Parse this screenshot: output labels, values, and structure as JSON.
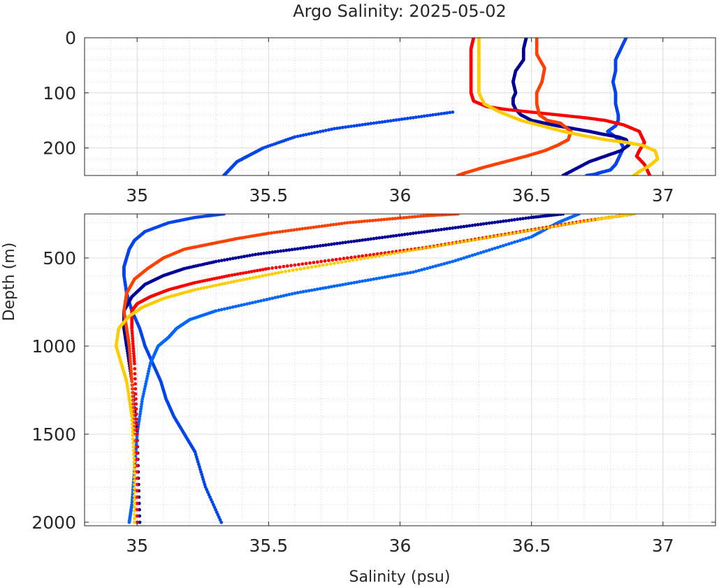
{
  "title": "Argo Salinity: 2025-05-02",
  "chart_data": [
    {
      "type": "scatter",
      "title": "Argo Salinity: 2025-05-02",
      "xlabel": "",
      "ylabel": "",
      "xlim": [
        34.8,
        37.2
      ],
      "ylim": [
        0,
        250
      ],
      "y_reversed": true,
      "grid": true,
      "minor_grid": true,
      "xticks": [
        35,
        35.5,
        36,
        36.5,
        37
      ],
      "xtick_labels": [
        "35",
        "35.5",
        "36",
        "36.5",
        "37"
      ],
      "yticks": [
        0,
        100,
        200
      ],
      "ytick_labels": [
        "0",
        "100",
        "200"
      ],
      "series": [
        {
          "color": "#0044ee",
          "style": "scatter",
          "x": [
            36.86,
            36.84,
            36.82,
            36.82,
            36.81,
            36.82,
            36.82,
            36.83,
            36.83,
            36.82,
            36.79,
            36.82,
            36.84,
            36.85,
            36.84,
            36.83,
            36.82,
            36.8,
            36.76,
            36.74,
            36.71
          ],
          "y": [
            0,
            20,
            40,
            60,
            80,
            100,
            120,
            140,
            150,
            160,
            170,
            180,
            190,
            200,
            210,
            220,
            230,
            240,
            245,
            248,
            250
          ]
        },
        {
          "color": "#000099",
          "style": "scatter",
          "x": [
            36.48,
            36.47,
            36.47,
            36.44,
            36.43,
            36.44,
            36.43,
            36.43,
            36.44,
            36.46,
            36.5,
            36.55,
            36.6,
            36.66,
            36.72,
            36.77,
            36.83,
            36.86,
            36.87,
            36.84,
            36.78,
            36.72,
            36.66,
            36.62
          ],
          "y": [
            0,
            20,
            40,
            60,
            80,
            100,
            110,
            120,
            130,
            140,
            150,
            155,
            160,
            165,
            170,
            175,
            180,
            185,
            195,
            205,
            215,
            225,
            240,
            250
          ]
        },
        {
          "color": "#ff0000",
          "style": "scatter",
          "x": [
            36.28,
            36.27,
            36.27,
            36.27,
            36.27,
            36.27,
            36.28,
            36.33,
            36.4,
            36.5,
            36.6,
            36.7,
            36.78,
            36.85,
            36.91,
            36.93,
            36.91,
            36.9,
            36.93,
            36.95
          ],
          "y": [
            0,
            20,
            40,
            60,
            80,
            100,
            115,
            125,
            130,
            135,
            140,
            145,
            150,
            158,
            170,
            190,
            205,
            215,
            230,
            250
          ]
        },
        {
          "color": "#ff4000",
          "style": "scatter",
          "x": [
            36.52,
            36.52,
            36.55,
            36.54,
            36.52,
            36.52,
            36.53,
            36.56,
            36.61,
            36.65,
            36.64,
            36.6,
            36.55,
            36.48,
            36.4,
            36.32,
            36.25,
            36.22
          ],
          "y": [
            0,
            30,
            55,
            80,
            100,
            120,
            140,
            150,
            155,
            170,
            185,
            195,
            205,
            215,
            225,
            235,
            245,
            250
          ]
        },
        {
          "color": "#ffcc00",
          "style": "scatter",
          "x": [
            36.3,
            36.3,
            36.3,
            36.3,
            36.3,
            36.3,
            36.32,
            36.38,
            36.46,
            36.54,
            36.62,
            36.7,
            36.78,
            36.86,
            36.92,
            36.97,
            36.98,
            36.95,
            36.91,
            36.89
          ],
          "y": [
            0,
            20,
            40,
            60,
            80,
            100,
            120,
            135,
            150,
            160,
            170,
            178,
            185,
            190,
            195,
            205,
            220,
            232,
            243,
            250
          ]
        },
        {
          "color": "#0044ee",
          "style": "scatter",
          "x": [
            36.2,
            36.05,
            35.9,
            35.75,
            35.6,
            35.48,
            35.42,
            35.38,
            35.35,
            35.33
          ],
          "y": [
            135,
            145,
            155,
            165,
            180,
            200,
            215,
            225,
            240,
            250
          ]
        }
      ]
    },
    {
      "type": "scatter",
      "title": "",
      "xlabel": "Salinity (psu)",
      "ylabel": "Depth (m)",
      "xlim": [
        34.8,
        37.2
      ],
      "ylim": [
        250,
        2020
      ],
      "y_reversed": true,
      "grid": true,
      "minor_grid": true,
      "xticks": [
        35,
        35.5,
        36,
        36.5,
        37
      ],
      "xtick_labels": [
        "35",
        "35.5",
        "36",
        "36.5",
        "37"
      ],
      "yticks": [
        500,
        1000,
        1500,
        2000
      ],
      "ytick_labels": [
        "500",
        "1000",
        "1500",
        "2000"
      ],
      "series": [
        {
          "color": "#0044ee",
          "style": "scatter",
          "x": [
            35.33,
            35.22,
            35.12,
            35.03,
            34.99,
            34.97,
            34.96,
            34.95,
            34.95,
            34.96,
            34.98,
            35.01,
            35.03,
            35.06,
            35.09,
            35.11,
            35.14,
            35.18,
            35.22,
            35.26,
            35.32
          ],
          "y": [
            250,
            270,
            300,
            350,
            400,
            450,
            500,
            550,
            600,
            700,
            800,
            900,
            1000,
            1100,
            1200,
            1300,
            1400,
            1500,
            1600,
            1800,
            2000
          ]
        },
        {
          "color": "#0066ff",
          "style": "scatter",
          "x": [
            36.68,
            36.6,
            36.5,
            36.35,
            36.2,
            36.05,
            35.9,
            35.75,
            35.6,
            35.45,
            35.3,
            35.2,
            35.15,
            35.12,
            35.08,
            35.05,
            35.02,
            35.0,
            34.99,
            34.98,
            34.97
          ],
          "y": [
            250,
            300,
            380,
            450,
            520,
            580,
            620,
            660,
            700,
            750,
            800,
            850,
            900,
            950,
            1000,
            1100,
            1300,
            1500,
            1700,
            1900,
            2000
          ]
        },
        {
          "color": "#000099",
          "style": "scatter",
          "x": [
            36.62,
            36.5,
            36.35,
            36.2,
            36.05,
            35.9,
            35.75,
            35.6,
            35.45,
            35.3,
            35.18,
            35.1,
            35.03,
            34.98,
            34.95,
            34.95,
            34.96,
            34.98,
            35.0,
            35.01
          ],
          "y": [
            250,
            270,
            300,
            330,
            360,
            390,
            420,
            450,
            480,
            520,
            560,
            600,
            650,
            720,
            800,
            900,
            1000,
            1200,
            1500,
            2000
          ]
        },
        {
          "color": "#ff4000",
          "style": "scatter",
          "x": [
            36.22,
            36.1,
            35.95,
            35.8,
            35.65,
            35.5,
            35.38,
            35.28,
            35.18,
            35.1,
            35.04,
            34.99,
            34.96,
            34.95,
            34.96,
            34.97,
            34.98,
            34.99,
            35.0
          ],
          "y": [
            250,
            260,
            280,
            300,
            330,
            360,
            390,
            420,
            450,
            500,
            560,
            620,
            700,
            800,
            900,
            1000,
            1200,
            1500,
            2000
          ]
        },
        {
          "color": "#ff0000",
          "style": "scatter",
          "x": [
            36.89,
            36.7,
            36.5,
            36.3,
            36.1,
            35.9,
            35.7,
            35.5,
            35.35,
            35.22,
            35.12,
            35.05,
            35.0,
            34.98,
            34.98,
            34.99,
            35.0,
            35.0
          ],
          "y": [
            250,
            290,
            340,
            390,
            440,
            480,
            520,
            560,
            600,
            640,
            680,
            720,
            760,
            800,
            900,
            1100,
            1500,
            2000
          ]
        },
        {
          "color": "#ffcc00",
          "style": "scatter",
          "x": [
            36.89,
            36.75,
            36.55,
            36.35,
            36.15,
            35.95,
            35.75,
            35.55,
            35.38,
            35.22,
            35.1,
            35.02,
            34.97,
            34.93,
            34.92,
            34.94,
            34.96,
            34.98,
            34.99,
            34.99
          ],
          "y": [
            250,
            280,
            330,
            380,
            430,
            480,
            530,
            580,
            630,
            680,
            730,
            780,
            830,
            900,
            1000,
            1100,
            1200,
            1400,
            1700,
            2000
          ]
        }
      ]
    }
  ]
}
